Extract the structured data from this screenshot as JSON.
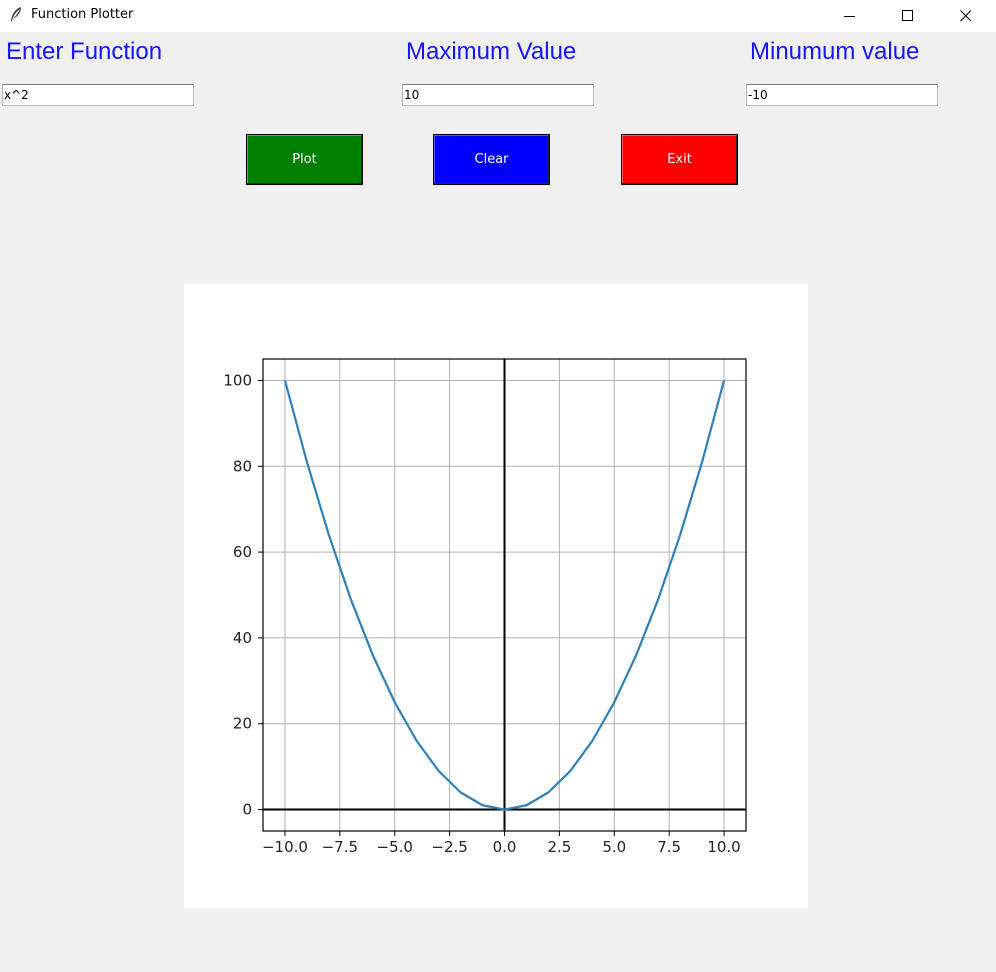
{
  "window": {
    "title": "Function Plotter",
    "icon": "feather-icon",
    "controls": [
      "minimize-icon",
      "maximize-icon",
      "close-icon"
    ]
  },
  "form": {
    "function_label": "Enter Function",
    "function_value": "x^2",
    "max_label": "Maximum Value",
    "max_value": "10",
    "min_label": "Minumum value",
    "min_value": "-10",
    "label_color": "#1414ff"
  },
  "buttons": {
    "plot": {
      "label": "Plot",
      "color": "#008000"
    },
    "clear": {
      "label": "Clear",
      "color": "#0000ff"
    },
    "exit": {
      "label": "Exit",
      "color": "#ff0000"
    }
  },
  "chart_data": {
    "type": "line",
    "title": "",
    "xlabel": "",
    "ylabel": "",
    "xlim": [
      -11,
      11
    ],
    "ylim": [
      -5,
      105
    ],
    "grid": true,
    "xticks": [
      "−10.0",
      "−7.5",
      "−5.0",
      "−2.5",
      "0.0",
      "2.5",
      "5.0",
      "7.5",
      "10.0"
    ],
    "xtick_values": [
      -10,
      -7.5,
      -5,
      -2.5,
      0,
      2.5,
      5,
      7.5,
      10
    ],
    "yticks": [
      "0",
      "20",
      "40",
      "60",
      "80",
      "100"
    ],
    "ytick_values": [
      0,
      20,
      40,
      60,
      80,
      100
    ],
    "series": [
      {
        "color": "#2f7fb8",
        "x": [
          -10,
          -9,
          -8,
          -7,
          -6,
          -5,
          -4,
          -3,
          -2,
          -1,
          0,
          1,
          2,
          3,
          4,
          5,
          6,
          7,
          8,
          9,
          10
        ],
        "y": [
          100,
          81,
          64,
          49,
          36,
          25,
          16,
          9,
          4,
          1,
          0,
          1,
          4,
          9,
          16,
          25,
          36,
          49,
          64,
          81,
          100
        ]
      }
    ]
  }
}
